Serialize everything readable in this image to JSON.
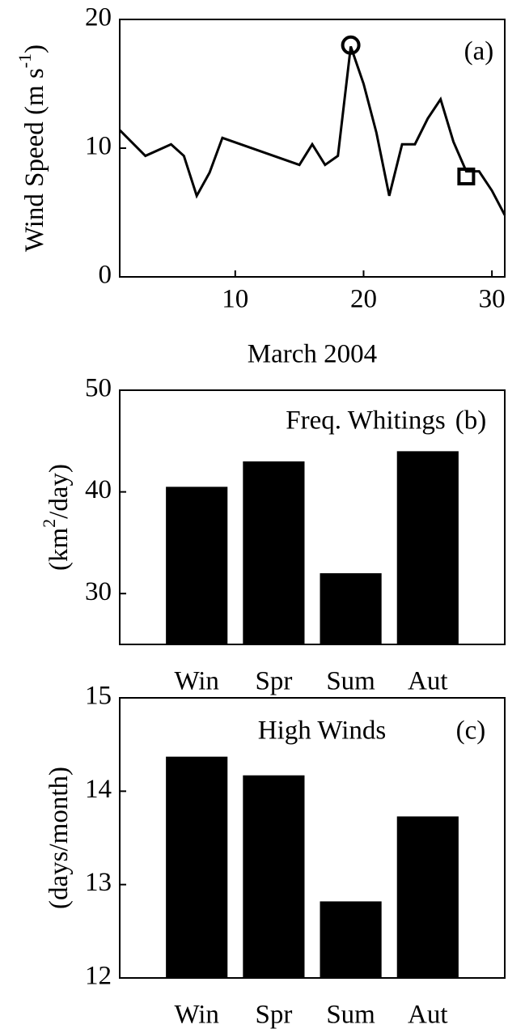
{
  "chart_data": [
    {
      "type": "line",
      "ylabel": [
        "Wind Speed (m s",
        "-1",
        ")"
      ],
      "xlabel": "March 2004",
      "panel_label": "(a)",
      "x": [
        1,
        3,
        5,
        6,
        7,
        8,
        9,
        15,
        16,
        17,
        18,
        19,
        20,
        21,
        22,
        23,
        24,
        25,
        26,
        27,
        28,
        29,
        30,
        31
      ],
      "values": [
        11.4,
        9.4,
        10.3,
        9.4,
        6.3,
        8.1,
        10.8,
        8.7,
        10.3,
        8.7,
        9.4,
        17.9,
        15,
        11.2,
        6.3,
        10.3,
        10.3,
        12.3,
        13.8,
        10.5,
        8.2,
        8.2,
        6.7,
        4.8
      ],
      "color": "#000000",
      "markers": [
        {
          "shape": "circle",
          "x": 19,
          "y": 18
        },
        {
          "shape": "square",
          "x": 28,
          "y": 7.8
        }
      ],
      "xlim": [
        1,
        31
      ],
      "xticks": [
        10,
        20,
        30
      ],
      "ylim": [
        0,
        20
      ],
      "yticks": [
        0,
        10,
        20
      ]
    },
    {
      "type": "bar",
      "ylabel": [
        "(km",
        "2",
        "/day)"
      ],
      "annotation": "Freq. Whitings",
      "panel_label": "(b)",
      "categories": [
        "Win",
        "Spr",
        "Sum",
        "Aut"
      ],
      "values": [
        40.5,
        43,
        32,
        44
      ],
      "color": "#000000",
      "ylim": [
        25,
        50
      ],
      "yticks": [
        30,
        40,
        50
      ]
    },
    {
      "type": "bar",
      "ylabel": [
        "(days/month)"
      ],
      "annotation": "High Winds",
      "panel_label": "(c)",
      "categories": [
        "Win",
        "Spr",
        "Sum",
        "Aut"
      ],
      "values": [
        14.37,
        14.17,
        12.82,
        13.73
      ],
      "color": "#000000",
      "ylim": [
        12,
        15
      ],
      "yticks": [
        12,
        13,
        14,
        15
      ]
    }
  ]
}
